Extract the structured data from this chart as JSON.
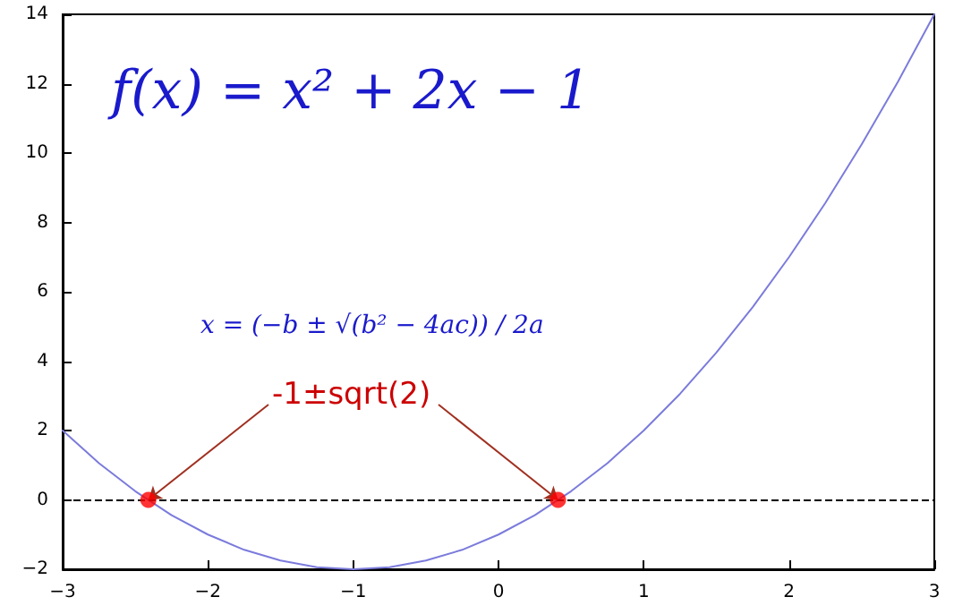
{
  "chart_data": {
    "type": "line",
    "x": [
      -3,
      -2.75,
      -2.5,
      -2.25,
      -2,
      -1.75,
      -1.5,
      -1.25,
      -1,
      -0.75,
      -0.5,
      -0.25,
      0,
      0.25,
      0.5,
      0.75,
      1,
      1.25,
      1.5,
      1.75,
      2,
      2.25,
      2.5,
      2.75,
      3
    ],
    "series": [
      {
        "color": "#7b7bdc",
        "values": [
          2,
          1.06,
          0.25,
          -0.44,
          -1,
          -1.44,
          -1.75,
          -1.94,
          -2,
          -1.94,
          -1.75,
          -1.44,
          -1,
          -0.44,
          0.25,
          1.06,
          2,
          3.06,
          4.25,
          5.56,
          7,
          8.56,
          10.25,
          12.06,
          14
        ],
        "marker": "none"
      },
      {
        "type": "scatter",
        "color": "#ff0000",
        "x": [
          -2.41,
          0.41
        ],
        "values": [
          0,
          0
        ],
        "marker": "circle"
      }
    ],
    "xlim": [
      -3,
      3
    ],
    "xticks": [
      -3,
      -2,
      -1,
      0,
      1,
      2,
      3
    ],
    "ylim": [
      -2,
      14
    ],
    "yticks": [
      -2,
      0,
      2,
      4,
      6,
      8,
      10,
      12,
      14
    ],
    "grid": false,
    "ref_lines": [
      {
        "axis": "y",
        "value": 0,
        "color": "#000000",
        "line_style": "dashed"
      }
    ],
    "annotations": [
      "f(x) = x² + 2x − 1",
      "x = (−b ± √(b² − 4ac)) / 2a",
      {
        "text": "-1±sqrt(2)",
        "x": -2.41,
        "y": 0
      }
    ]
  }
}
